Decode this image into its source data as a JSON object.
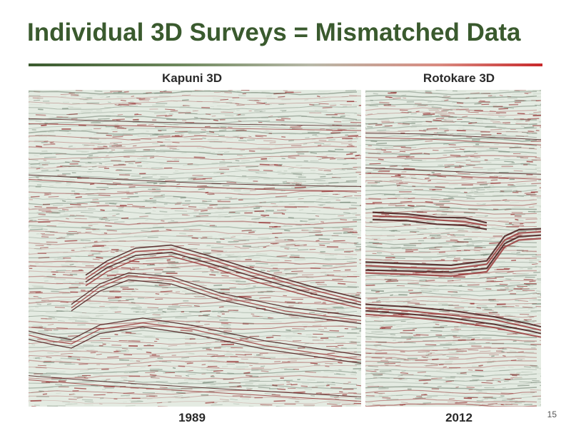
{
  "slide": {
    "title": "Individual 3D Surveys = Mismatched Data",
    "page_number": "15"
  },
  "panels": [
    {
      "name": "Kapuni 3D",
      "year": "1989"
    },
    {
      "name": "Rotokare 3D",
      "year": "2012"
    }
  ],
  "colors": {
    "title": "#3a5a2e",
    "trace_dark": "#4a1a1a",
    "trace_red": "#9a3b3b",
    "background_noise": "#e4ebe2"
  },
  "icons": []
}
